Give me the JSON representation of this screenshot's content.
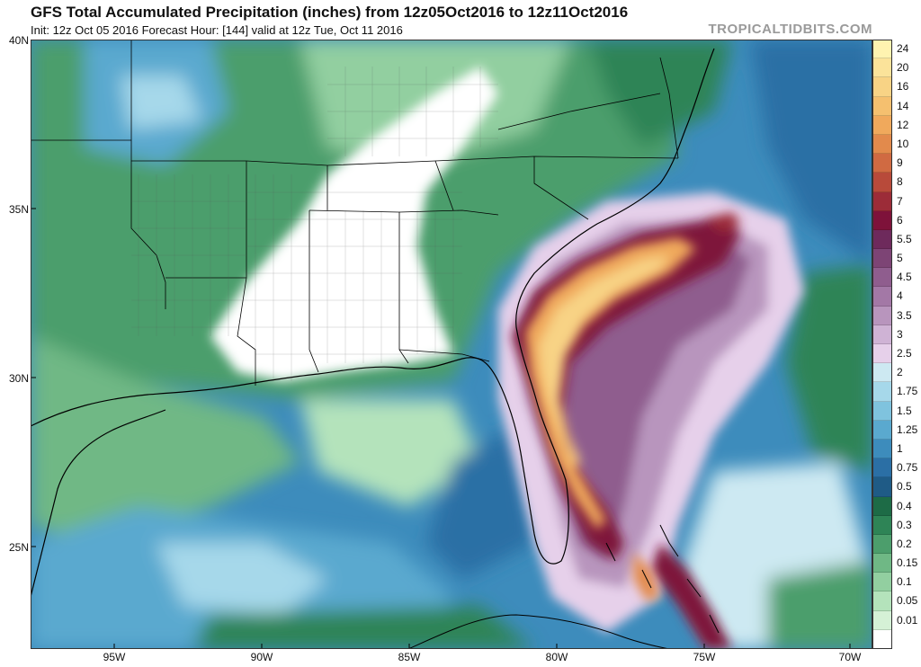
{
  "header": {
    "title": "GFS Total Accumulated Precipitation (inches) from 12z05Oct2016 to 12z11Oct2016",
    "subtitle": "Init: 12z Oct 05 2016   Forecast Hour: [144]   valid at 12z Tue, Oct 11 2016",
    "brand": "TROPICALTIDBITS.COM"
  },
  "map": {
    "lat_labels": [
      "40N",
      "35N",
      "30N",
      "25N"
    ],
    "lon_labels": [
      "95W",
      "90W",
      "85W",
      "80W",
      "75W",
      "70W"
    ],
    "land_color": "#ffffff",
    "border_color": "#000000"
  },
  "colorbar": {
    "levels": [
      {
        "label": "24",
        "color": "#fff3b0"
      },
      {
        "label": "20",
        "color": "#fbe39a"
      },
      {
        "label": "16",
        "color": "#f8d385"
      },
      {
        "label": "14",
        "color": "#f5c06f"
      },
      {
        "label": "12",
        "color": "#f0a95c"
      },
      {
        "label": "10",
        "color": "#e28a4c"
      },
      {
        "label": "9",
        "color": "#d06a42"
      },
      {
        "label": "8",
        "color": "#b84a3a"
      },
      {
        "label": "7",
        "color": "#9c2c38"
      },
      {
        "label": "6",
        "color": "#7e123a"
      },
      {
        "label": "5.5",
        "color": "#6e2a5c"
      },
      {
        "label": "5",
        "color": "#7d4475"
      },
      {
        "label": "4.5",
        "color": "#8f5d8e"
      },
      {
        "label": "4",
        "color": "#a378a6"
      },
      {
        "label": "3.5",
        "color": "#b895bd"
      },
      {
        "label": "3",
        "color": "#cfb3d5"
      },
      {
        "label": "2.5",
        "color": "#e6d0ea"
      },
      {
        "label": "2",
        "color": "#cde9f2"
      },
      {
        "label": "1.75",
        "color": "#a6d8ea"
      },
      {
        "label": "1.5",
        "color": "#7fc3de"
      },
      {
        "label": "1.25",
        "color": "#5aa9cf"
      },
      {
        "label": "1",
        "color": "#3d8cbc"
      },
      {
        "label": "0.75",
        "color": "#2b6fa5"
      },
      {
        "label": "0.5",
        "color": "#1f5b86"
      },
      {
        "label": "0.4",
        "color": "#1d6b46"
      },
      {
        "label": "0.3",
        "color": "#2e8456"
      },
      {
        "label": "0.2",
        "color": "#4c9e6c"
      },
      {
        "label": "0.15",
        "color": "#6fb885"
      },
      {
        "label": "0.1",
        "color": "#92cfa0"
      },
      {
        "label": "0.05",
        "color": "#b4e3bb"
      },
      {
        "label": "0.01",
        "color": "#d5f1d6"
      },
      {
        "label": "",
        "color": "#ffffff"
      }
    ]
  }
}
